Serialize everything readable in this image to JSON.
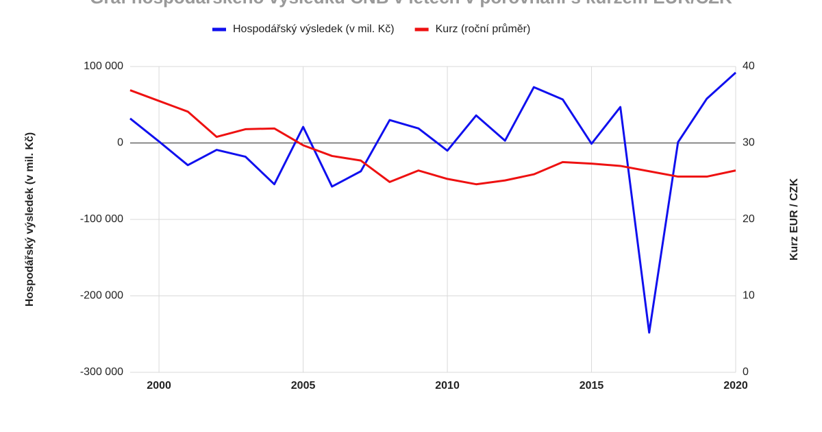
{
  "chart_data": {
    "type": "line",
    "title": "Graf hospodářského výsledku ČNB v letech v porovnání s kurzem EUR/CZK",
    "y_label": "Hospodářský výsledek (v mil. Kč)",
    "y2_label": "Kurz EUR / CZK",
    "x": [
      1999,
      2000,
      2001,
      2002,
      2003,
      2004,
      2005,
      2006,
      2007,
      2008,
      2009,
      2010,
      2011,
      2012,
      2013,
      2014,
      2015,
      2016,
      2017,
      2018,
      2019,
      2020
    ],
    "xlim": [
      1999,
      2020
    ],
    "xticks": [
      2000,
      2005,
      2010,
      2015,
      2020
    ],
    "ylim": [
      -300000,
      100000
    ],
    "yticks": [
      {
        "value": -300000,
        "label": "-300 000"
      },
      {
        "value": -200000,
        "label": "-200 000"
      },
      {
        "value": -100000,
        "label": "-100 000"
      },
      0,
      {
        "value": 100000,
        "label": "100 000"
      }
    ],
    "y2lim": [
      0,
      40
    ],
    "y2ticks": [
      0,
      10,
      20,
      30,
      40
    ],
    "grid": true,
    "legend": "top",
    "series": [
      {
        "name": "Hospodářský výsledek (v mil. Kč)",
        "color": "#1010ee",
        "values": [
          32000,
          2000,
          -29000,
          -9000,
          -18000,
          -54000,
          21000,
          -57000,
          -37000,
          30000,
          19000,
          -10000,
          36000,
          3000,
          73000,
          57000,
          -1000,
          47000,
          -248000,
          1000,
          58000,
          92000
        ]
      },
      {
        "name": "Kurz (roční průměr)",
        "color": "#ee1111",
        "axis": "y2",
        "values": [
          36.9,
          35.5,
          34.1,
          30.8,
          31.8,
          31.9,
          29.7,
          28.3,
          27.7,
          24.9,
          26.4,
          25.3,
          24.6,
          25.1,
          25.9,
          27.5,
          27.3,
          27.0,
          26.3,
          25.6,
          25.6,
          26.4
        ]
      }
    ]
  }
}
